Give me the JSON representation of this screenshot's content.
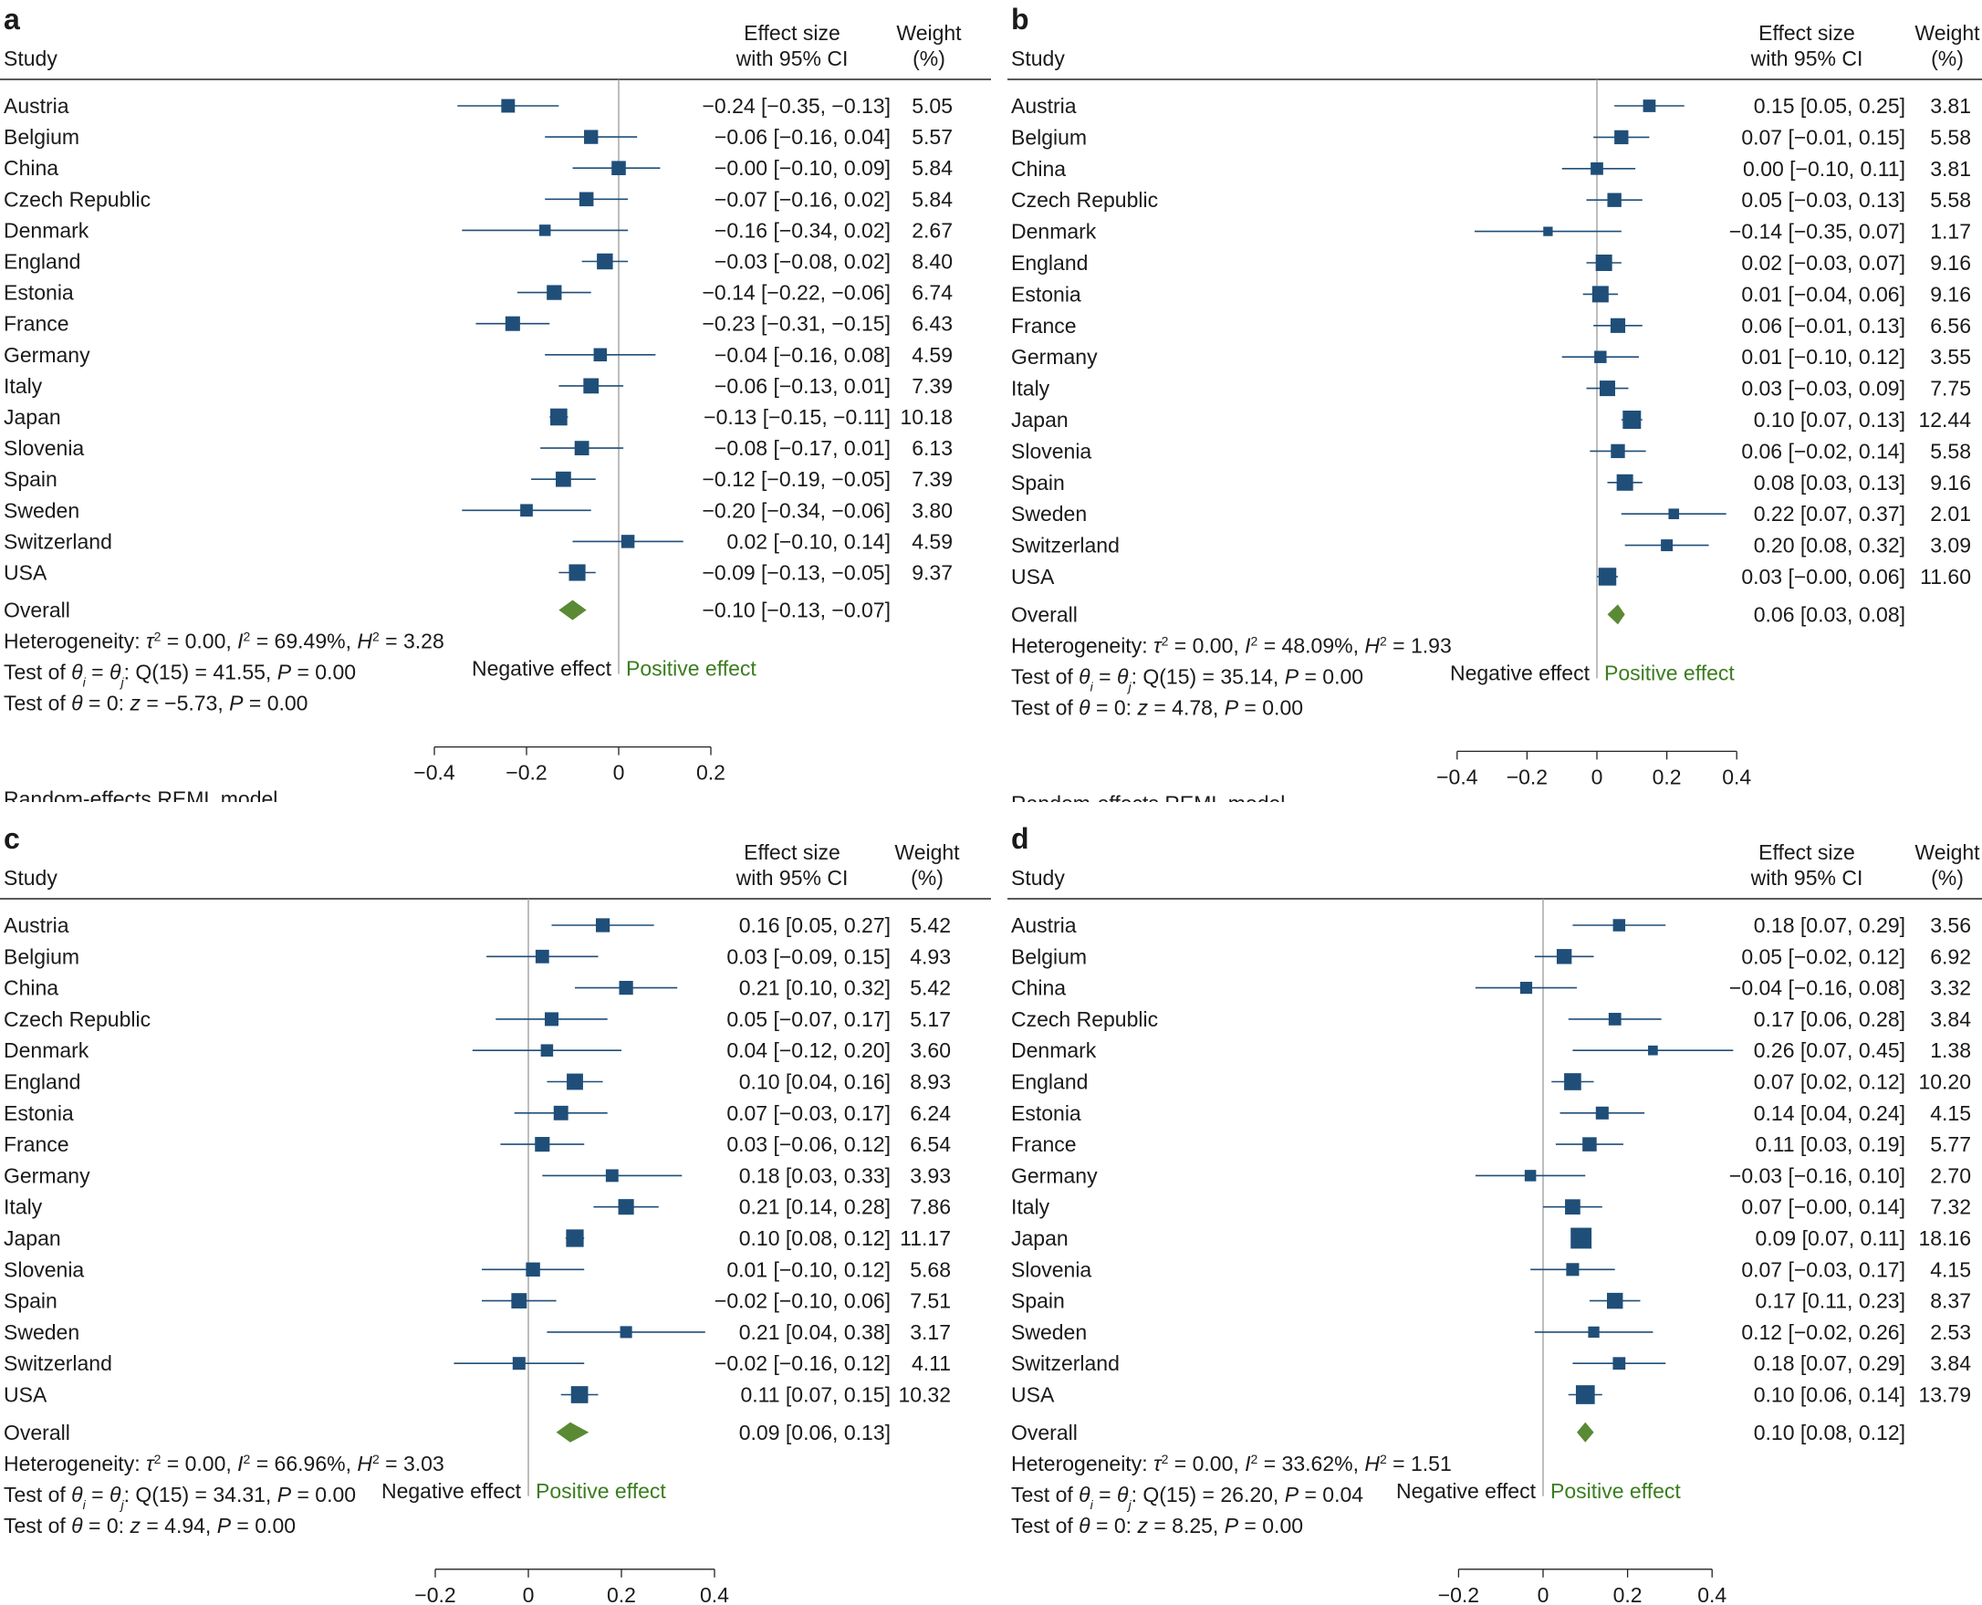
{
  "column_headers": {
    "study": "Study",
    "effect_line1": "Effect size",
    "effect_line2": "with 95% CI",
    "weight_line1": "Weight",
    "weight_line2": "(%)"
  },
  "labels": {
    "overall": "Overall",
    "negative_effect": "Negative effect",
    "positive_effect": "Positive effect",
    "model": "Random-effects REML model"
  },
  "colors": {
    "marker": "#1f4e79",
    "diamond": "#5a8a34",
    "positive_text": "#3a7d1e",
    "text": "#1a1a1a",
    "zero_line": "#9a9a9a"
  },
  "chart_data": [
    {
      "type": "forest",
      "panel_label": "a",
      "xlim": [
        -0.45,
        0.2
      ],
      "ticks": [
        -0.4,
        -0.2,
        0,
        0.2
      ],
      "tick_labels": [
        "−0.4",
        "−0.2",
        "0",
        "0.2"
      ],
      "studies": [
        {
          "name": "Austria",
          "es": -0.24,
          "lo": -0.35,
          "hi": -0.13,
          "weight": 5.05,
          "ci_text": "−0.24 [−0.35, −0.13]",
          "weight_text": "5.05"
        },
        {
          "name": "Belgium",
          "es": -0.06,
          "lo": -0.16,
          "hi": 0.04,
          "weight": 5.57,
          "ci_text": "−0.06 [−0.16, 0.04]",
          "weight_text": "5.57"
        },
        {
          "name": "China",
          "es": -0.0,
          "lo": -0.1,
          "hi": 0.09,
          "weight": 5.84,
          "ci_text": "−0.00 [−0.10, 0.09]",
          "weight_text": "5.84"
        },
        {
          "name": "Czech Republic",
          "es": -0.07,
          "lo": -0.16,
          "hi": 0.02,
          "weight": 5.84,
          "ci_text": "−0.07 [−0.16, 0.02]",
          "weight_text": "5.84"
        },
        {
          "name": "Denmark",
          "es": -0.16,
          "lo": -0.34,
          "hi": 0.02,
          "weight": 2.67,
          "ci_text": "−0.16 [−0.34, 0.02]",
          "weight_text": "2.67"
        },
        {
          "name": "England",
          "es": -0.03,
          "lo": -0.08,
          "hi": 0.02,
          "weight": 8.4,
          "ci_text": "−0.03 [−0.08, 0.02]",
          "weight_text": "8.40"
        },
        {
          "name": "Estonia",
          "es": -0.14,
          "lo": -0.22,
          "hi": -0.06,
          "weight": 6.74,
          "ci_text": "−0.14 [−0.22, −0.06]",
          "weight_text": "6.74"
        },
        {
          "name": "France",
          "es": -0.23,
          "lo": -0.31,
          "hi": -0.15,
          "weight": 6.43,
          "ci_text": "−0.23 [−0.31, −0.15]",
          "weight_text": "6.43"
        },
        {
          "name": "Germany",
          "es": -0.04,
          "lo": -0.16,
          "hi": 0.08,
          "weight": 4.59,
          "ci_text": "−0.04 [−0.16, 0.08]",
          "weight_text": "4.59"
        },
        {
          "name": "Italy",
          "es": -0.06,
          "lo": -0.13,
          "hi": 0.01,
          "weight": 7.39,
          "ci_text": "−0.06 [−0.13, 0.01]",
          "weight_text": "7.39"
        },
        {
          "name": "Japan",
          "es": -0.13,
          "lo": -0.15,
          "hi": -0.11,
          "weight": 10.18,
          "ci_text": "−0.13 [−0.15, −0.11]",
          "weight_text": "10.18"
        },
        {
          "name": "Slovenia",
          "es": -0.08,
          "lo": -0.17,
          "hi": 0.01,
          "weight": 6.13,
          "ci_text": "−0.08 [−0.17, 0.01]",
          "weight_text": "6.13"
        },
        {
          "name": "Spain",
          "es": -0.12,
          "lo": -0.19,
          "hi": -0.05,
          "weight": 7.39,
          "ci_text": "−0.12 [−0.19, −0.05]",
          "weight_text": "7.39"
        },
        {
          "name": "Sweden",
          "es": -0.2,
          "lo": -0.34,
          "hi": -0.06,
          "weight": 3.8,
          "ci_text": "−0.20 [−0.34, −0.06]",
          "weight_text": "3.80"
        },
        {
          "name": "Switzerland",
          "es": 0.02,
          "lo": -0.1,
          "hi": 0.14,
          "weight": 4.59,
          "ci_text": "0.02 [−0.10, 0.14]",
          "weight_text": "4.59"
        },
        {
          "name": "USA",
          "es": -0.09,
          "lo": -0.13,
          "hi": -0.05,
          "weight": 9.37,
          "ci_text": "−0.09 [−0.13, −0.05]",
          "weight_text": "9.37"
        }
      ],
      "overall": {
        "es": -0.1,
        "lo": -0.13,
        "hi": -0.07,
        "ci_text": "−0.10 [−0.13, −0.07]"
      },
      "heterogeneity": {
        "tau2": "0.00",
        "I2": "69.49%",
        "H2": "3.28"
      },
      "test_q": {
        "df": "15",
        "Q": "41.55",
        "P": "0.00"
      },
      "test_z": {
        "z": "−5.73",
        "P": "0.00"
      }
    },
    {
      "type": "forest",
      "panel_label": "b",
      "xlim": [
        -0.45,
        0.4
      ],
      "ticks": [
        -0.4,
        -0.2,
        0,
        0.2,
        0.4
      ],
      "tick_labels": [
        "−0.4",
        "−0.2",
        "0",
        "0.2",
        "0.4"
      ],
      "studies": [
        {
          "name": "Austria",
          "es": 0.15,
          "lo": 0.05,
          "hi": 0.25,
          "weight": 3.81,
          "ci_text": "0.15 [0.05, 0.25]",
          "weight_text": "3.81"
        },
        {
          "name": "Belgium",
          "es": 0.07,
          "lo": -0.01,
          "hi": 0.15,
          "weight": 5.58,
          "ci_text": "0.07 [−0.01, 0.15]",
          "weight_text": "5.58"
        },
        {
          "name": "China",
          "es": 0.0,
          "lo": -0.1,
          "hi": 0.11,
          "weight": 3.81,
          "ci_text": "0.00 [−0.10, 0.11]",
          "weight_text": "3.81"
        },
        {
          "name": "Czech Republic",
          "es": 0.05,
          "lo": -0.03,
          "hi": 0.13,
          "weight": 5.58,
          "ci_text": "0.05 [−0.03, 0.13]",
          "weight_text": "5.58"
        },
        {
          "name": "Denmark",
          "es": -0.14,
          "lo": -0.35,
          "hi": 0.07,
          "weight": 1.17,
          "ci_text": "−0.14 [−0.35, 0.07]",
          "weight_text": "1.17"
        },
        {
          "name": "England",
          "es": 0.02,
          "lo": -0.03,
          "hi": 0.07,
          "weight": 9.16,
          "ci_text": "0.02 [−0.03, 0.07]",
          "weight_text": "9.16"
        },
        {
          "name": "Estonia",
          "es": 0.01,
          "lo": -0.04,
          "hi": 0.06,
          "weight": 9.16,
          "ci_text": "0.01 [−0.04, 0.06]",
          "weight_text": "9.16"
        },
        {
          "name": "France",
          "es": 0.06,
          "lo": -0.01,
          "hi": 0.13,
          "weight": 6.56,
          "ci_text": "0.06 [−0.01, 0.13]",
          "weight_text": "6.56"
        },
        {
          "name": "Germany",
          "es": 0.01,
          "lo": -0.1,
          "hi": 0.12,
          "weight": 3.55,
          "ci_text": "0.01 [−0.10, 0.12]",
          "weight_text": "3.55"
        },
        {
          "name": "Italy",
          "es": 0.03,
          "lo": -0.03,
          "hi": 0.09,
          "weight": 7.75,
          "ci_text": "0.03 [−0.03, 0.09]",
          "weight_text": "7.75"
        },
        {
          "name": "Japan",
          "es": 0.1,
          "lo": 0.07,
          "hi": 0.13,
          "weight": 12.44,
          "ci_text": "0.10 [0.07, 0.13]",
          "weight_text": "12.44"
        },
        {
          "name": "Slovenia",
          "es": 0.06,
          "lo": -0.02,
          "hi": 0.14,
          "weight": 5.58,
          "ci_text": "0.06 [−0.02, 0.14]",
          "weight_text": "5.58"
        },
        {
          "name": "Spain",
          "es": 0.08,
          "lo": 0.03,
          "hi": 0.13,
          "weight": 9.16,
          "ci_text": "0.08 [0.03, 0.13]",
          "weight_text": "9.16"
        },
        {
          "name": "Sweden",
          "es": 0.22,
          "lo": 0.07,
          "hi": 0.37,
          "weight": 2.01,
          "ci_text": "0.22 [0.07, 0.37]",
          "weight_text": "2.01"
        },
        {
          "name": "Switzerland",
          "es": 0.2,
          "lo": 0.08,
          "hi": 0.32,
          "weight": 3.09,
          "ci_text": "0.20 [0.08, 0.32]",
          "weight_text": "3.09"
        },
        {
          "name": "USA",
          "es": 0.03,
          "lo": -0.0,
          "hi": 0.06,
          "weight": 11.6,
          "ci_text": "0.03 [−0.00, 0.06]",
          "weight_text": "11.60"
        }
      ],
      "overall": {
        "es": 0.06,
        "lo": 0.03,
        "hi": 0.08,
        "ci_text": "0.06 [0.03, 0.08]"
      },
      "heterogeneity": {
        "tau2": "0.00",
        "I2": "48.09%",
        "H2": "1.93"
      },
      "test_q": {
        "df": "15",
        "Q": "35.14",
        "P": "0.00"
      },
      "test_z": {
        "z": "4.78",
        "P": "0.00"
      }
    },
    {
      "type": "forest",
      "panel_label": "c",
      "xlim": [
        -0.2,
        0.4
      ],
      "ticks": [
        -0.2,
        0,
        0.2,
        0.4
      ],
      "tick_labels": [
        "−0.2",
        "0",
        "0.2",
        "0.4"
      ],
      "studies": [
        {
          "name": "Austria",
          "es": 0.16,
          "lo": 0.05,
          "hi": 0.27,
          "weight": 5.42,
          "ci_text": "0.16 [0.05, 0.27]",
          "weight_text": "5.42"
        },
        {
          "name": "Belgium",
          "es": 0.03,
          "lo": -0.09,
          "hi": 0.15,
          "weight": 4.93,
          "ci_text": "0.03 [−0.09, 0.15]",
          "weight_text": "4.93"
        },
        {
          "name": "China",
          "es": 0.21,
          "lo": 0.1,
          "hi": 0.32,
          "weight": 5.42,
          "ci_text": "0.21 [0.10, 0.32]",
          "weight_text": "5.42"
        },
        {
          "name": "Czech Republic",
          "es": 0.05,
          "lo": -0.07,
          "hi": 0.17,
          "weight": 5.17,
          "ci_text": "0.05 [−0.07, 0.17]",
          "weight_text": "5.17"
        },
        {
          "name": "Denmark",
          "es": 0.04,
          "lo": -0.12,
          "hi": 0.2,
          "weight": 3.6,
          "ci_text": "0.04 [−0.12, 0.20]",
          "weight_text": "3.60"
        },
        {
          "name": "England",
          "es": 0.1,
          "lo": 0.04,
          "hi": 0.16,
          "weight": 8.93,
          "ci_text": "0.10 [0.04, 0.16]",
          "weight_text": "8.93"
        },
        {
          "name": "Estonia",
          "es": 0.07,
          "lo": -0.03,
          "hi": 0.17,
          "weight": 6.24,
          "ci_text": "0.07 [−0.03, 0.17]",
          "weight_text": "6.24"
        },
        {
          "name": "France",
          "es": 0.03,
          "lo": -0.06,
          "hi": 0.12,
          "weight": 6.54,
          "ci_text": "0.03 [−0.06, 0.12]",
          "weight_text": "6.54"
        },
        {
          "name": "Germany",
          "es": 0.18,
          "lo": 0.03,
          "hi": 0.33,
          "weight": 3.93,
          "ci_text": "0.18 [0.03, 0.33]",
          "weight_text": "3.93"
        },
        {
          "name": "Italy",
          "es": 0.21,
          "lo": 0.14,
          "hi": 0.28,
          "weight": 7.86,
          "ci_text": "0.21 [0.14, 0.28]",
          "weight_text": "7.86"
        },
        {
          "name": "Japan",
          "es": 0.1,
          "lo": 0.08,
          "hi": 0.12,
          "weight": 11.17,
          "ci_text": "0.10 [0.08, 0.12]",
          "weight_text": "11.17"
        },
        {
          "name": "Slovenia",
          "es": 0.01,
          "lo": -0.1,
          "hi": 0.12,
          "weight": 5.68,
          "ci_text": "0.01 [−0.10, 0.12]",
          "weight_text": "5.68"
        },
        {
          "name": "Spain",
          "es": -0.02,
          "lo": -0.1,
          "hi": 0.06,
          "weight": 7.51,
          "ci_text": "−0.02 [−0.10, 0.06]",
          "weight_text": "7.51"
        },
        {
          "name": "Sweden",
          "es": 0.21,
          "lo": 0.04,
          "hi": 0.38,
          "weight": 3.17,
          "ci_text": "0.21 [0.04, 0.38]",
          "weight_text": "3.17"
        },
        {
          "name": "Switzerland",
          "es": -0.02,
          "lo": -0.16,
          "hi": 0.12,
          "weight": 4.11,
          "ci_text": "−0.02 [−0.16, 0.12]",
          "weight_text": "4.11"
        },
        {
          "name": "USA",
          "es": 0.11,
          "lo": 0.07,
          "hi": 0.15,
          "weight": 10.32,
          "ci_text": "0.11 [0.07, 0.15]",
          "weight_text": "10.32"
        }
      ],
      "overall": {
        "es": 0.09,
        "lo": 0.06,
        "hi": 0.13,
        "ci_text": "0.09 [0.06, 0.13]"
      },
      "heterogeneity": {
        "tau2": "0.00",
        "I2": "66.96%",
        "H2": "3.03"
      },
      "test_q": {
        "df": "15",
        "Q": "34.31",
        "P": "0.00"
      },
      "test_z": {
        "z": "4.94",
        "P": "0.00"
      }
    },
    {
      "type": "forest",
      "panel_label": "d",
      "xlim": [
        -0.2,
        0.45
      ],
      "ticks": [
        -0.2,
        0,
        0.2,
        0.4
      ],
      "tick_labels": [
        "−0.2",
        "0",
        "0.2",
        "0.4"
      ],
      "studies": [
        {
          "name": "Austria",
          "es": 0.18,
          "lo": 0.07,
          "hi": 0.29,
          "weight": 3.56,
          "ci_text": "0.18 [0.07, 0.29]",
          "weight_text": "3.56"
        },
        {
          "name": "Belgium",
          "es": 0.05,
          "lo": -0.02,
          "hi": 0.12,
          "weight": 6.92,
          "ci_text": "0.05 [−0.02, 0.12]",
          "weight_text": "6.92"
        },
        {
          "name": "China",
          "es": -0.04,
          "lo": -0.16,
          "hi": 0.08,
          "weight": 3.32,
          "ci_text": "−0.04 [−0.16, 0.08]",
          "weight_text": "3.32"
        },
        {
          "name": "Czech Republic",
          "es": 0.17,
          "lo": 0.06,
          "hi": 0.28,
          "weight": 3.84,
          "ci_text": "0.17 [0.06, 0.28]",
          "weight_text": "3.84"
        },
        {
          "name": "Denmark",
          "es": 0.26,
          "lo": 0.07,
          "hi": 0.45,
          "weight": 1.38,
          "ci_text": "0.26 [0.07, 0.45]",
          "weight_text": "1.38"
        },
        {
          "name": "England",
          "es": 0.07,
          "lo": 0.02,
          "hi": 0.12,
          "weight": 10.2,
          "ci_text": "0.07 [0.02, 0.12]",
          "weight_text": "10.20"
        },
        {
          "name": "Estonia",
          "es": 0.14,
          "lo": 0.04,
          "hi": 0.24,
          "weight": 4.15,
          "ci_text": "0.14 [0.04, 0.24]",
          "weight_text": "4.15"
        },
        {
          "name": "France",
          "es": 0.11,
          "lo": 0.03,
          "hi": 0.19,
          "weight": 5.77,
          "ci_text": "0.11 [0.03, 0.19]",
          "weight_text": "5.77"
        },
        {
          "name": "Germany",
          "es": -0.03,
          "lo": -0.16,
          "hi": 0.1,
          "weight": 2.7,
          "ci_text": "−0.03 [−0.16, 0.10]",
          "weight_text": "2.70"
        },
        {
          "name": "Italy",
          "es": 0.07,
          "lo": -0.0,
          "hi": 0.14,
          "weight": 7.32,
          "ci_text": "0.07 [−0.00, 0.14]",
          "weight_text": "7.32"
        },
        {
          "name": "Japan",
          "es": 0.09,
          "lo": 0.07,
          "hi": 0.11,
          "weight": 18.16,
          "ci_text": "0.09 [0.07, 0.11]",
          "weight_text": "18.16"
        },
        {
          "name": "Slovenia",
          "es": 0.07,
          "lo": -0.03,
          "hi": 0.17,
          "weight": 4.15,
          "ci_text": "0.07 [−0.03, 0.17]",
          "weight_text": "4.15"
        },
        {
          "name": "Spain",
          "es": 0.17,
          "lo": 0.11,
          "hi": 0.23,
          "weight": 8.37,
          "ci_text": "0.17 [0.11, 0.23]",
          "weight_text": "8.37"
        },
        {
          "name": "Sweden",
          "es": 0.12,
          "lo": -0.02,
          "hi": 0.26,
          "weight": 2.53,
          "ci_text": "0.12 [−0.02, 0.26]",
          "weight_text": "2.53"
        },
        {
          "name": "Switzerland",
          "es": 0.18,
          "lo": 0.07,
          "hi": 0.29,
          "weight": 3.84,
          "ci_text": "0.18 [0.07, 0.29]",
          "weight_text": "3.84"
        },
        {
          "name": "USA",
          "es": 0.1,
          "lo": 0.06,
          "hi": 0.14,
          "weight": 13.79,
          "ci_text": "0.10 [0.06, 0.14]",
          "weight_text": "13.79"
        }
      ],
      "overall": {
        "es": 0.1,
        "lo": 0.08,
        "hi": 0.12,
        "ci_text": "0.10 [0.08, 0.12]"
      },
      "heterogeneity": {
        "tau2": "0.00",
        "I2": "33.62%",
        "H2": "1.51"
      },
      "test_q": {
        "df": "15",
        "Q": "26.20",
        "P": "0.04"
      },
      "test_z": {
        "z": "8.25",
        "P": "0.00"
      }
    }
  ]
}
